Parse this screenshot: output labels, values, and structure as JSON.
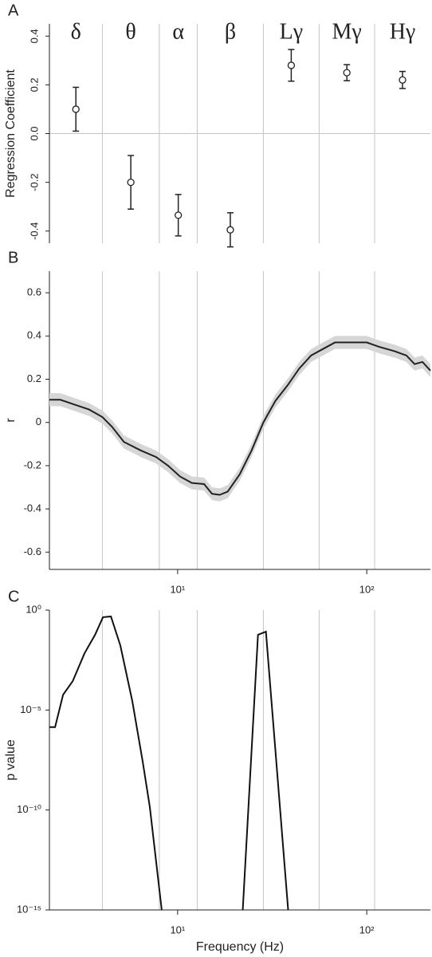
{
  "chart_data": [
    {
      "type": "errorbar",
      "panel_label": "A",
      "ylabel": "Regression Coefficient",
      "categories": [
        "δ",
        "θ",
        "α",
        "β",
        "Lγ",
        "Mγ",
        "Hγ"
      ],
      "values": [
        0.1,
        -0.2,
        -0.335,
        -0.395,
        0.28,
        0.25,
        0.22
      ],
      "errors": [
        0.09,
        0.11,
        0.085,
        0.07,
        0.065,
        0.033,
        0.035
      ],
      "xlim": [
        2.1,
        217
      ],
      "log_x": true,
      "xgrid": [
        4,
        8,
        12.7,
        28.4,
        56,
        110
      ],
      "ylim": [
        -0.45,
        0.45
      ],
      "yticks": [
        0.4,
        0.2,
        {
          "value": 0,
          "label": "0.0"
        },
        -0.2,
        -0.4
      ],
      "zero_line": true,
      "color": "#222222"
    },
    {
      "type": "line",
      "panel_label": "B",
      "ylabel": "r",
      "x": [
        2.1,
        2.4,
        2.8,
        3.4,
        4,
        4.5,
        5.2,
        6.4,
        7.7,
        8.9,
        10.3,
        11.9,
        13.8,
        15.2,
        16.7,
        18.4,
        21.3,
        24.6,
        28.4,
        32.9,
        38,
        44,
        50.8,
        58.7,
        67.9,
        82.4,
        100,
        116,
        140,
        162,
        179,
        197,
        217
      ],
      "series": [
        {
          "color": "#222222",
          "band_color": "#d6d6d6",
          "error": 0.03,
          "values": [
            0.105,
            0.105,
            0.085,
            0.06,
            0.025,
            -0.02,
            -0.09,
            -0.13,
            -0.16,
            -0.2,
            -0.25,
            -0.28,
            -0.285,
            -0.33,
            -0.335,
            -0.32,
            -0.24,
            -0.13,
            0.0,
            0.1,
            0.17,
            0.25,
            0.31,
            0.34,
            0.37,
            0.37,
            0.37,
            0.35,
            0.33,
            0.31,
            0.27,
            0.28,
            0.24
          ]
        }
      ],
      "xlim": [
        2.1,
        217
      ],
      "log_x": true,
      "xgrid": [
        4,
        8,
        12.7,
        28.4,
        56,
        110
      ],
      "xticks": [
        {
          "value": 10,
          "label": "10¹"
        },
        {
          "value": 100,
          "label": "10²"
        }
      ],
      "ylim": [
        -0.68,
        0.7
      ],
      "yticks": [
        0.6,
        0.4,
        0.2,
        0,
        -0.2,
        -0.4,
        -0.6
      ]
    },
    {
      "type": "line",
      "panel_label": "C",
      "ylabel": "p value",
      "xlabel": "Frequency (Hz)",
      "x": [
        2.1,
        2.25,
        2.48,
        2.79,
        3.22,
        3.66,
        4.03,
        4.44,
        4.98,
        5.76,
        6.53,
        7.13,
        8.24,
        15,
        22.1,
        26.6,
        29.3,
        38.4
      ],
      "series": [
        {
          "color": "#111111",
          "values": [
            1.4e-06,
            1.4e-06,
            5.8e-05,
            0.00028,
            0.0069,
            0.058,
            0.44,
            0.48,
            0.017,
            2.8e-05,
            2.8e-08,
            1.4e-10,
            1e-15,
            null,
            1e-15,
            0.058,
            0.083,
            1e-15
          ]
        }
      ],
      "xlim": [
        2.1,
        217
      ],
      "log_x": true,
      "xgrid": [
        4,
        8,
        12.7,
        28.4,
        56,
        110
      ],
      "xticks": [
        {
          "value": 10,
          "label": "10¹"
        },
        {
          "value": 100,
          "label": "10²"
        }
      ],
      "ylim": [
        1e-15,
        1
      ],
      "log_y": true,
      "yticks": [
        {
          "value": 1,
          "label": "10⁰"
        },
        {
          "value": 1e-05,
          "label": "10⁻⁵"
        },
        {
          "value": 1e-10,
          "label": "10⁻¹⁰"
        },
        {
          "value": 1e-15,
          "label": "10⁻¹⁵"
        }
      ]
    }
  ]
}
